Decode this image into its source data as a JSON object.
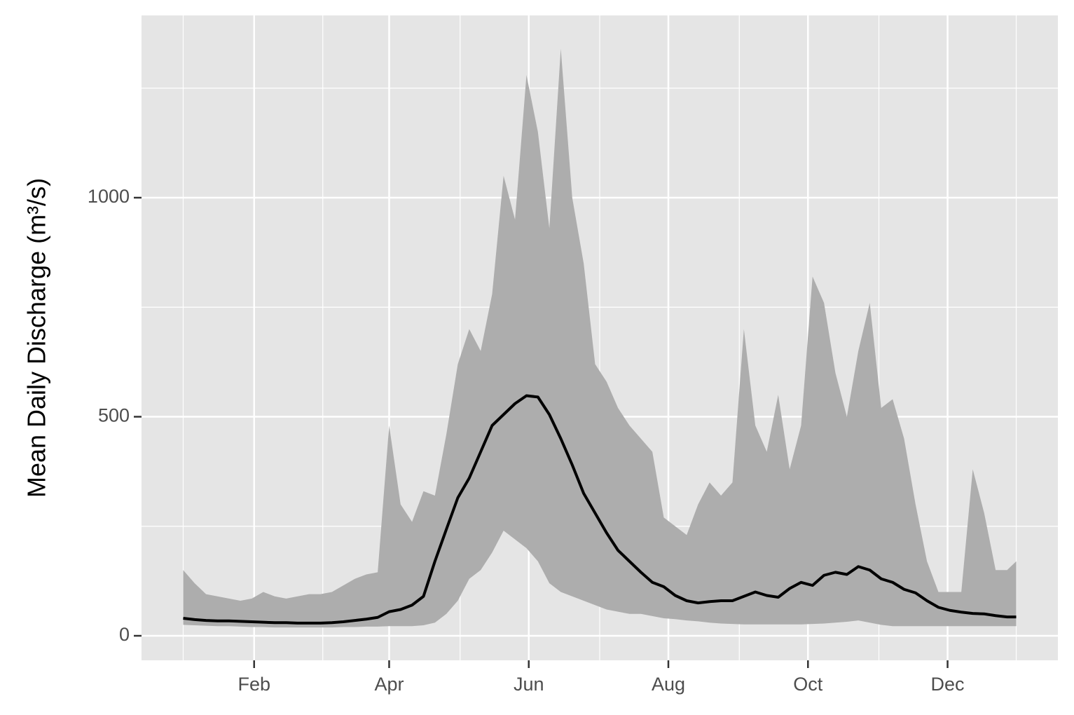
{
  "chart_data": {
    "type": "line",
    "y_label": "Mean Daily Discharge (m³/s)",
    "x": [
      1,
      6,
      11,
      16,
      21,
      26,
      31,
      36,
      41,
      46,
      51,
      56,
      61,
      66,
      71,
      76,
      81,
      86,
      91,
      96,
      101,
      106,
      111,
      116,
      121,
      126,
      131,
      136,
      141,
      146,
      151,
      156,
      161,
      166,
      171,
      176,
      181,
      186,
      191,
      196,
      201,
      206,
      211,
      216,
      221,
      226,
      231,
      236,
      241,
      246,
      251,
      256,
      261,
      266,
      271,
      276,
      281,
      286,
      291,
      296,
      301,
      306,
      311,
      316,
      321,
      326,
      331,
      336,
      341,
      346,
      351,
      356,
      361,
      365
    ],
    "ribbon": {
      "color": "#adadad",
      "lower": [
        25,
        24,
        23,
        22,
        22,
        21,
        20,
        20,
        19,
        19,
        19,
        19,
        19,
        19,
        20,
        20,
        21,
        21,
        22,
        22,
        22,
        24,
        30,
        50,
        80,
        130,
        150,
        190,
        240,
        220,
        200,
        170,
        120,
        100,
        90,
        80,
        70,
        60,
        55,
        50,
        50,
        45,
        40,
        38,
        35,
        33,
        30,
        28,
        27,
        26,
        26,
        26,
        26,
        26,
        26,
        27,
        28,
        30,
        32,
        35,
        30,
        25,
        22,
        22,
        22,
        22,
        22,
        22,
        22,
        22,
        22,
        22,
        22,
        22
      ],
      "upper": [
        150,
        120,
        95,
        90,
        85,
        80,
        85,
        100,
        90,
        85,
        90,
        95,
        95,
        100,
        115,
        130,
        140,
        145,
        480,
        300,
        260,
        330,
        320,
        460,
        620,
        700,
        650,
        780,
        1050,
        950,
        1280,
        1150,
        930,
        1340,
        1000,
        850,
        620,
        580,
        520,
        480,
        450,
        420,
        270,
        250,
        230,
        300,
        350,
        320,
        350,
        700,
        480,
        420,
        550,
        380,
        480,
        820,
        760,
        600,
        500,
        650,
        760,
        520,
        540,
        450,
        300,
        170,
        100,
        100,
        100,
        380,
        280,
        150,
        150,
        170
      ]
    },
    "series": [
      {
        "color": "#000000",
        "values": [
          40,
          37,
          35,
          34,
          34,
          33,
          32,
          31,
          30,
          30,
          29,
          29,
          29,
          30,
          32,
          35,
          38,
          42,
          55,
          60,
          70,
          90,
          170,
          243,
          315,
          360,
          420,
          480,
          505,
          530,
          548,
          545,
          505,
          450,
          390,
          325,
          280,
          235,
          195,
          170,
          145,
          122,
          112,
          92,
          80,
          75,
          78,
          80,
          80,
          90,
          100,
          92,
          88,
          108,
          122,
          115,
          138,
          145,
          140,
          158,
          150,
          130,
          122,
          106,
          98,
          80,
          65,
          58,
          54,
          51,
          50,
          46,
          43,
          43
        ]
      }
    ],
    "xlim": [
      -17.2,
      383.2
    ],
    "xticks": [
      {
        "value": 32,
        "label": "Feb"
      },
      {
        "value": 91,
        "label": "Apr"
      },
      {
        "value": 152,
        "label": "Jun"
      },
      {
        "value": 213,
        "label": "Aug"
      },
      {
        "value": 274,
        "label": "Oct"
      },
      {
        "value": 335,
        "label": "Dec"
      }
    ],
    "x_minor_grid": [
      1,
      62,
      122,
      183,
      244,
      305,
      365
    ],
    "ylim": [
      -56,
      1416
    ],
    "yticks": [
      0,
      500,
      1000
    ],
    "y_minor_grid": [
      250,
      750,
      1250
    ],
    "grid": true,
    "panel_color": "#e5e5e5",
    "grid_color": "#ffffff"
  }
}
